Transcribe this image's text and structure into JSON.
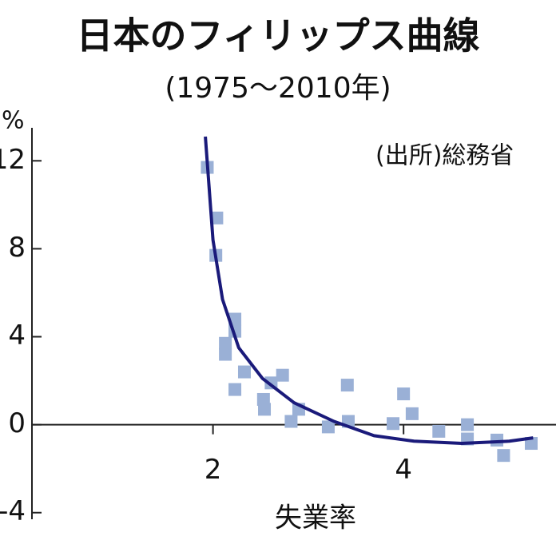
{
  "chart_data": {
    "type": "scatter",
    "title": "日本のフィリップス曲線",
    "subtitle": "(1975〜2010年)",
    "y_unit": "%",
    "source": "(出所)総務省",
    "xlabel": "失業率",
    "xlim": [
      0.1,
      5.6
    ],
    "xticks": [
      2,
      4
    ],
    "ylim": [
      -4.3,
      13.5
    ],
    "yticks": [
      -4,
      0,
      4,
      8,
      12
    ],
    "grid": false,
    "series": [
      {
        "type": "scatter",
        "color": "#9ab0d6",
        "x": [
          1.94,
          2.04,
          2.03,
          2.23,
          2.23,
          2.13,
          2.13,
          2.33,
          2.23,
          2.61,
          2.73,
          2.53,
          2.54,
          2.82,
          2.9,
          3.21,
          3.41,
          3.42,
          3.89,
          4.0,
          4.09,
          4.37,
          4.67,
          4.67,
          4.98,
          5.05,
          5.34
        ],
        "y": [
          11.7,
          9.4,
          7.7,
          4.8,
          4.25,
          3.7,
          3.2,
          2.4,
          1.6,
          1.9,
          2.25,
          1.15,
          0.7,
          0.15,
          0.7,
          -0.1,
          1.8,
          0.15,
          0.05,
          1.4,
          0.5,
          -0.3,
          0,
          -0.65,
          -0.7,
          -1.4,
          -0.85
        ]
      },
      {
        "type": "line",
        "color": "#1a1a7a",
        "x": [
          1.92,
          2.0,
          2.1,
          2.27,
          2.52,
          2.85,
          3.27,
          3.69,
          4.11,
          4.61,
          5.11,
          5.36
        ],
        "y": [
          13.1,
          8.4,
          5.7,
          3.5,
          2.1,
          1.0,
          0.15,
          -0.5,
          -0.75,
          -0.85,
          -0.75,
          -0.6
        ]
      }
    ]
  }
}
